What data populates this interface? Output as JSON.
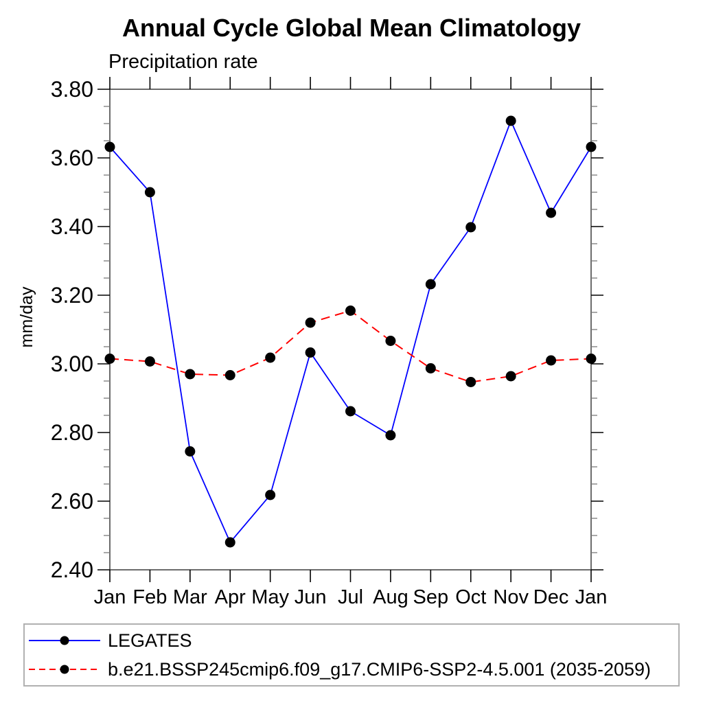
{
  "chart": {
    "title": "Annual Cycle Global Mean Climatology",
    "subtitle": "Precipitation rate",
    "ylabel": "mm/day"
  },
  "chart_data": {
    "type": "line",
    "title": "Annual Cycle Global Mean Climatology",
    "subtitle": "Precipitation rate",
    "xlabel": "",
    "ylabel": "mm/day",
    "categories": [
      "Jan",
      "Feb",
      "Mar",
      "Apr",
      "May",
      "Jun",
      "Jul",
      "Aug",
      "Sep",
      "Oct",
      "Nov",
      "Dec",
      "Jan"
    ],
    "ylim": [
      2.4,
      3.8
    ],
    "ytick_step": 0.2,
    "yminor_step": 0.05,
    "ytick_labels": [
      "2.40",
      "2.60",
      "2.80",
      "3.00",
      "3.20",
      "3.40",
      "3.60",
      "3.80"
    ],
    "grid": false,
    "legend_position": "bottom",
    "marker": "filled-circle",
    "marker_color": "#000000",
    "series": [
      {
        "name": "LEGATES",
        "color": "#0000ff",
        "line_style": "solid",
        "values": [
          3.632,
          3.5,
          2.745,
          2.48,
          2.618,
          3.033,
          2.862,
          2.792,
          3.232,
          3.398,
          3.708,
          3.44,
          3.632
        ]
      },
      {
        "name": "b.e21.BSSP245cmip6.f09_g17.CMIP6-SSP2-4.5.001 (2035-2059)",
        "color": "#ff0000",
        "line_style": "dashed",
        "values": [
          3.015,
          3.007,
          2.97,
          2.967,
          3.018,
          3.12,
          3.155,
          3.067,
          2.987,
          2.947,
          2.964,
          3.01,
          3.015
        ]
      }
    ]
  }
}
